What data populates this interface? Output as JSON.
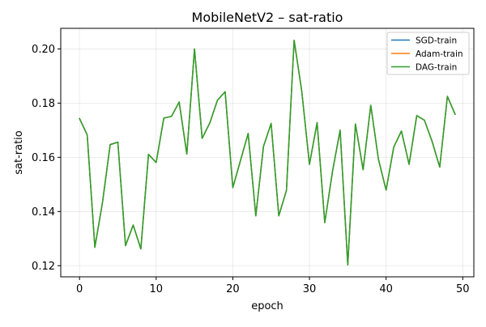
{
  "chart_data": {
    "type": "line",
    "title": "MobileNetV2 – sat-ratio",
    "xlabel": "epoch",
    "ylabel": "sat-ratio",
    "xlim": [
      -2.45,
      51.45
    ],
    "ylim": [
      0.1159,
      0.2076
    ],
    "xticks": [
      0,
      10,
      20,
      30,
      40,
      50
    ],
    "xtick_labels": [
      "0",
      "10",
      "20",
      "30",
      "40",
      "50"
    ],
    "yticks": [
      0.12,
      0.14,
      0.16,
      0.18,
      0.2
    ],
    "ytick_labels": [
      "0.12",
      "0.14",
      "0.16",
      "0.18",
      "0.20"
    ],
    "grid": true,
    "legend_position": "top-right",
    "x": [
      0,
      1,
      2,
      3,
      4,
      5,
      6,
      7,
      8,
      9,
      10,
      11,
      12,
      13,
      14,
      15,
      16,
      17,
      18,
      19,
      20,
      21,
      22,
      23,
      24,
      25,
      26,
      27,
      28,
      29,
      30,
      31,
      32,
      33,
      34,
      35,
      36,
      37,
      38,
      39,
      40,
      41,
      42,
      43,
      44,
      45,
      46,
      47,
      48,
      49
    ],
    "series": [
      {
        "name": "SGD-train",
        "color": "#1f77b4",
        "values": [
          0.1743,
          0.1683,
          0.1268,
          0.1434,
          0.1647,
          0.1656,
          0.1274,
          0.135,
          0.1262,
          0.1611,
          0.1581,
          0.1745,
          0.1751,
          0.1804,
          0.1612,
          0.2,
          0.167,
          0.1727,
          0.1811,
          0.1842,
          0.1488,
          0.1588,
          0.1688,
          0.1384,
          0.164,
          0.1725,
          0.1384,
          0.1478,
          0.2032,
          0.1843,
          0.1574,
          0.1728,
          0.1359,
          0.1547,
          0.17,
          0.1203,
          0.1723,
          0.1554,
          0.1792,
          0.1593,
          0.1479,
          0.1638,
          0.1697,
          0.1574,
          0.1754,
          0.1737,
          0.1659,
          0.1564,
          0.1825,
          0.1759
        ]
      },
      {
        "name": "Adam-train",
        "color": "#ff7f0e",
        "values": [
          0.1743,
          0.1683,
          0.1268,
          0.1434,
          0.1647,
          0.1656,
          0.1274,
          0.135,
          0.1262,
          0.1611,
          0.1581,
          0.1745,
          0.1751,
          0.1804,
          0.1612,
          0.2,
          0.167,
          0.1727,
          0.1811,
          0.1842,
          0.1488,
          0.1588,
          0.1688,
          0.1384,
          0.164,
          0.1725,
          0.1384,
          0.1478,
          0.2032,
          0.1843,
          0.1574,
          0.1728,
          0.1359,
          0.1547,
          0.17,
          0.1203,
          0.1723,
          0.1554,
          0.1792,
          0.1593,
          0.1479,
          0.1638,
          0.1697,
          0.1574,
          0.1754,
          0.1737,
          0.1659,
          0.1564,
          0.1825,
          0.1759
        ]
      },
      {
        "name": "DAG-train",
        "color": "#2ca02c",
        "values": [
          0.1743,
          0.1683,
          0.1268,
          0.1434,
          0.1647,
          0.1656,
          0.1274,
          0.135,
          0.1262,
          0.1611,
          0.1581,
          0.1745,
          0.1751,
          0.1804,
          0.1612,
          0.2,
          0.167,
          0.1727,
          0.1811,
          0.1842,
          0.1488,
          0.1588,
          0.1688,
          0.1384,
          0.164,
          0.1725,
          0.1384,
          0.1478,
          0.2032,
          0.1843,
          0.1574,
          0.1728,
          0.1359,
          0.1547,
          0.17,
          0.1203,
          0.1723,
          0.1554,
          0.1792,
          0.1593,
          0.1479,
          0.1638,
          0.1697,
          0.1574,
          0.1754,
          0.1737,
          0.1659,
          0.1564,
          0.1825,
          0.1759
        ]
      }
    ]
  }
}
